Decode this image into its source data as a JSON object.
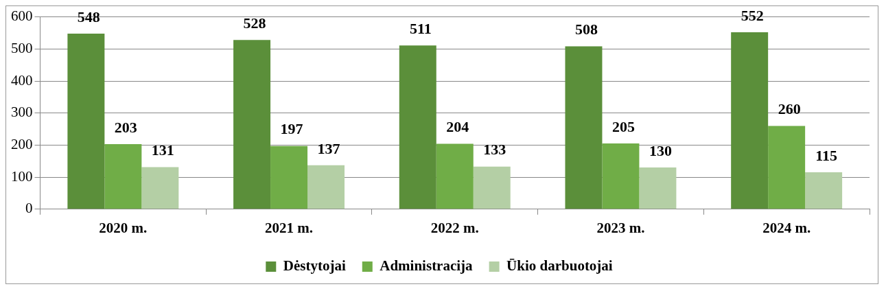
{
  "chart_data": {
    "type": "bar",
    "categories": [
      "2020 m.",
      "2021 m.",
      "2022 m.",
      "2023 m.",
      "2024 m."
    ],
    "series": [
      {
        "name": "Dėstytojai",
        "color": "#5b8f3a",
        "values": [
          548,
          528,
          511,
          508,
          552
        ]
      },
      {
        "name": "Administracija",
        "color": "#70ad47",
        "values": [
          203,
          197,
          204,
          205,
          260
        ]
      },
      {
        "name": "Ūkio darbuotojai",
        "color": "#b4cfa5",
        "values": [
          131,
          137,
          133,
          130,
          115
        ]
      }
    ],
    "ylim": [
      0,
      600
    ],
    "yticks": [
      0,
      100,
      200,
      300,
      400,
      500,
      600
    ],
    "grid": "y",
    "legend": "bottom",
    "data_labels": true
  }
}
